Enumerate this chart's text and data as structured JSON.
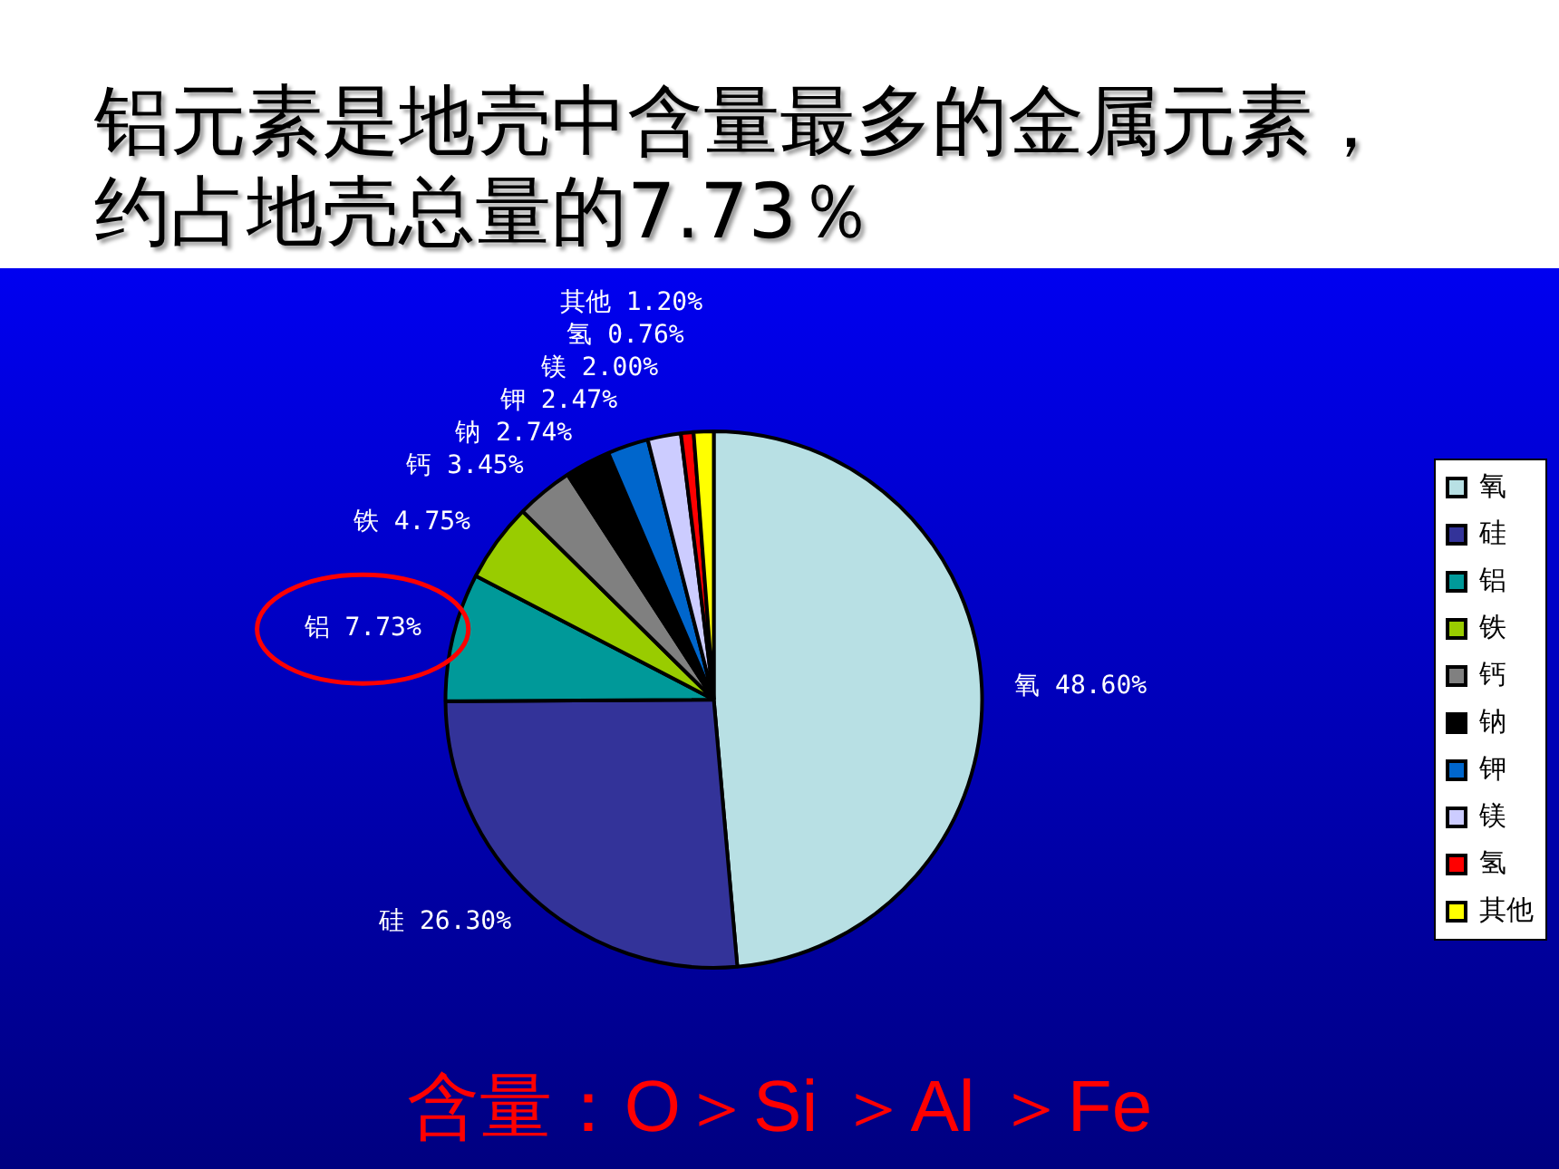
{
  "chart_data": {
    "type": "pie",
    "title": "铝元素是地壳中含量最多的金属元素，约占地壳总量的7.73％",
    "categories": [
      "氧",
      "硅",
      "铝",
      "铁",
      "钙",
      "钠",
      "钾",
      "镁",
      "氢",
      "其他"
    ],
    "values": [
      48.6,
      26.3,
      7.73,
      4.75,
      3.45,
      2.74,
      2.47,
      2.0,
      0.76,
      1.2
    ],
    "value_labels": [
      "48.60%",
      "26.30%",
      "7.73%",
      "4.75%",
      "3.45%",
      "2.74%",
      "2.47%",
      "2.00%",
      "0.76%",
      "1.20%"
    ],
    "colors": [
      "#b8e0e4",
      "#333399",
      "#009999",
      "#99cc00",
      "#808080",
      "#000000",
      "#0066cc",
      "#ccccff",
      "#ff0000",
      "#ffff00"
    ],
    "legend": "right",
    "annotations": [
      "含量：O＞Si ＞Al ＞Fe"
    ]
  }
}
